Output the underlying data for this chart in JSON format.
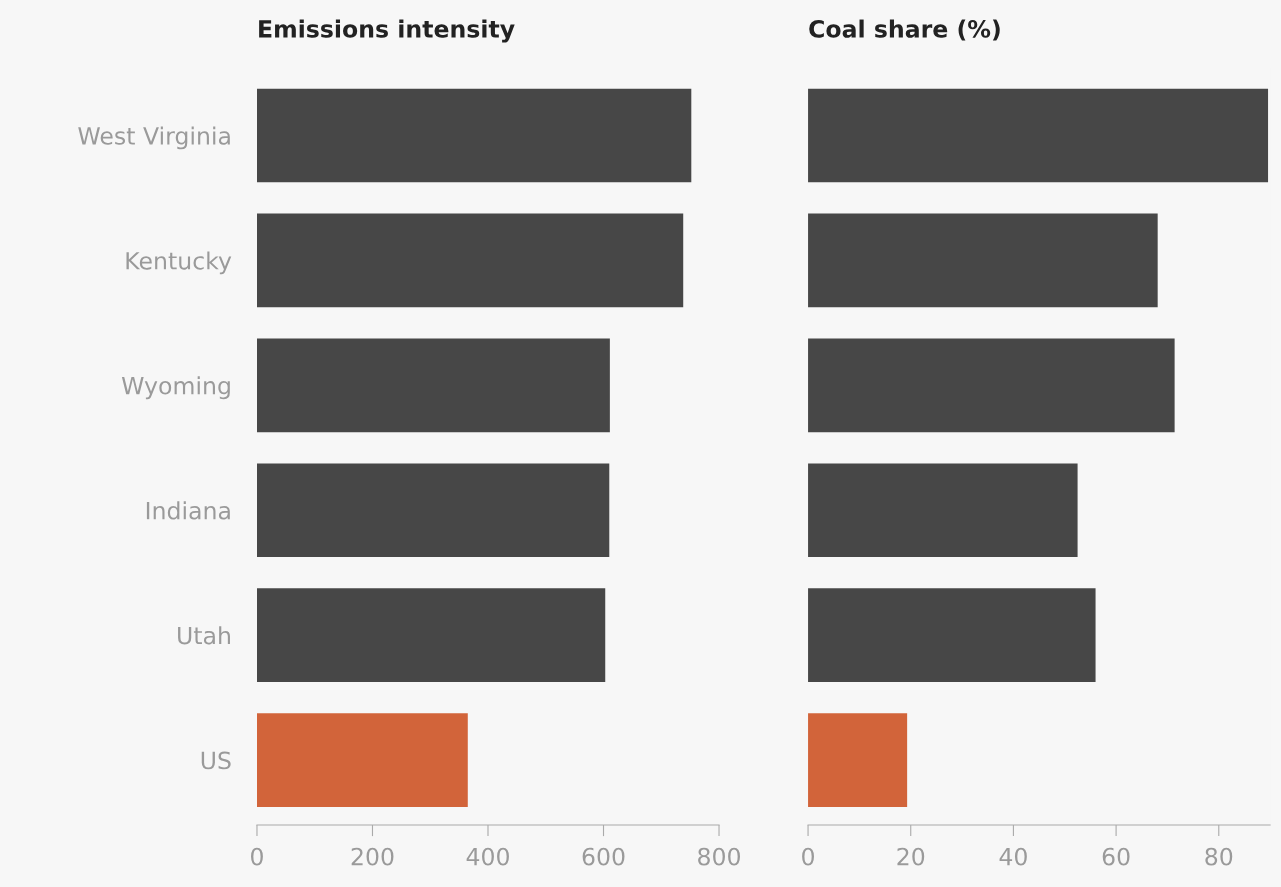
{
  "chart_data": [
    {
      "type": "bar",
      "orientation": "horizontal",
      "title": "Emissions intensity",
      "categories": [
        "West Virginia",
        "Kentucky",
        "Wyoming",
        "Indiana",
        "Utah",
        "US"
      ],
      "values": [
        752,
        738,
        611,
        610,
        603,
        365
      ],
      "colors": [
        "#474747",
        "#474747",
        "#474747",
        "#474747",
        "#474747",
        "#d2643a"
      ],
      "xlim": [
        0,
        800
      ],
      "xticks": [
        0,
        200,
        400,
        600,
        800
      ]
    },
    {
      "type": "bar",
      "orientation": "horizontal",
      "title": "Coal share (%)",
      "categories": [
        null,
        null,
        null,
        null,
        null,
        null
      ],
      "values": [
        89.6,
        68.1,
        71.4,
        52.5,
        56.0,
        19.3
      ],
      "colors": [
        "#474747",
        "#474747",
        "#474747",
        "#474747",
        "#474747",
        "#d2643a"
      ],
      "xlim": [
        0,
        90
      ],
      "xticks": [
        0,
        20,
        40,
        60,
        80
      ],
      "tick_labels": "x"
    }
  ]
}
